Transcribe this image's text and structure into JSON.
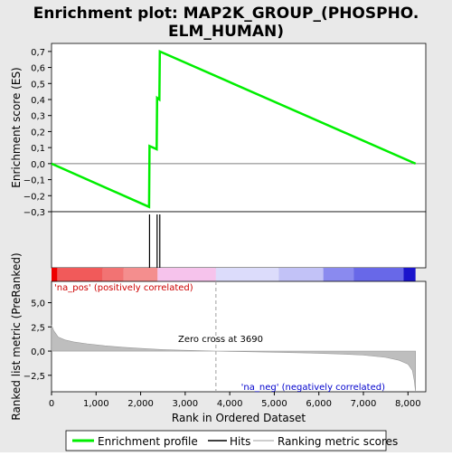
{
  "chart_data": {
    "type": "line",
    "title": "Enrichment plot: MAP2K_GROUP_(PHOSPHO.ELM_HUMAN)",
    "title_lines": [
      "Enrichment plot: MAP2K_GROUP_(PHOSPHO.",
      "ELM_HUMAN)"
    ],
    "xlabel": "Rank in Ordered Dataset",
    "xlim": [
      0,
      8400
    ],
    "x_ticks": [
      0,
      1000,
      2000,
      3000,
      4000,
      5000,
      6000,
      7000,
      8000
    ],
    "x_tick_labels": [
      "0",
      "1,000",
      "2,000",
      "3,000",
      "4,000",
      "5,000",
      "6,000",
      "7,000",
      "8,000"
    ],
    "es_panel": {
      "ylabel": "Enrichment score (ES)",
      "ylim": [
        -0.3,
        0.75
      ],
      "y_ticks": [
        -0.3,
        -0.2,
        -0.1,
        0.0,
        0.1,
        0.2,
        0.3,
        0.4,
        0.5,
        0.6,
        0.7
      ],
      "y_tick_labels": [
        "−0,3",
        "−0,2",
        "−0,1",
        "0,0",
        "0,1",
        "0,2",
        "0,3",
        "0,4",
        "0,5",
        "0,6",
        "0,7"
      ],
      "series": [
        {
          "name": "Enrichment profile",
          "color": "#00ee00",
          "x": [
            0,
            2190,
            2200,
            2360,
            2370,
            2420,
            2430,
            8170
          ],
          "y": [
            0.0,
            -0.27,
            0.11,
            0.09,
            0.41,
            0.4,
            0.7,
            0.0
          ]
        }
      ]
    },
    "hits": {
      "name": "Hits",
      "color": "#000000",
      "x": [
        2200,
        2370,
        2430
      ]
    },
    "color_bar": {
      "segments": [
        {
          "x0": 0,
          "x1": 130,
          "color": "#ee0000"
        },
        {
          "x0": 130,
          "x1": 1150,
          "color": "#f15a5a"
        },
        {
          "x0": 1150,
          "x1": 1620,
          "color": "#f27373"
        },
        {
          "x0": 1620,
          "x1": 2380,
          "color": "#f48e8e"
        },
        {
          "x0": 2380,
          "x1": 3690,
          "color": "#f6c3ec"
        },
        {
          "x0": 3690,
          "x1": 5100,
          "color": "#dcdcfb"
        },
        {
          "x0": 5100,
          "x1": 6100,
          "color": "#c2c2f7"
        },
        {
          "x0": 6100,
          "x1": 6780,
          "color": "#8a8aef"
        },
        {
          "x0": 6780,
          "x1": 7900,
          "color": "#6868e8"
        },
        {
          "x0": 7900,
          "x1": 8170,
          "color": "#1a14cc"
        }
      ]
    },
    "metric_panel": {
      "name": "Ranking metric scores",
      "ylabel": "Ranked list metric (PreRanked)",
      "ylim": [
        -4.2,
        7.2
      ],
      "y_ticks": [
        -2.5,
        0.0,
        2.5,
        5.0
      ],
      "y_tick_labels": [
        "−2,5",
        "0,0",
        "2,5",
        "5,0"
      ],
      "fill_color": "#bebebe",
      "x": [
        0,
        50,
        150,
        300,
        500,
        800,
        1200,
        1600,
        2000,
        2500,
        3000,
        3690,
        4200,
        5000,
        5800,
        6500,
        7000,
        7500,
        7800,
        8000,
        8100,
        8140,
        8170
      ],
      "y": [
        2.7,
        2.1,
        1.45,
        1.15,
        0.95,
        0.75,
        0.55,
        0.4,
        0.28,
        0.15,
        0.08,
        0.0,
        -0.05,
        -0.12,
        -0.2,
        -0.3,
        -0.42,
        -0.65,
        -0.95,
        -1.35,
        -2.0,
        -3.0,
        -4.2
      ]
    },
    "zero_cross": {
      "x": 3690,
      "label": "Zero cross at 3690"
    },
    "annotations": {
      "pos": {
        "text": "'na_pos' (positively correlated)",
        "color": "#cc0000"
      },
      "neg": {
        "text": "'na_neg' (negatively correlated)",
        "color": "#0000cc"
      }
    },
    "legend": {
      "position": "bottom",
      "items": [
        {
          "label": "Enrichment profile",
          "kind": "line",
          "color": "#00ee00"
        },
        {
          "label": "Hits",
          "kind": "line",
          "color": "#000000"
        },
        {
          "label": "Ranking metric scores",
          "kind": "line",
          "color": "#bebebe"
        }
      ]
    }
  }
}
